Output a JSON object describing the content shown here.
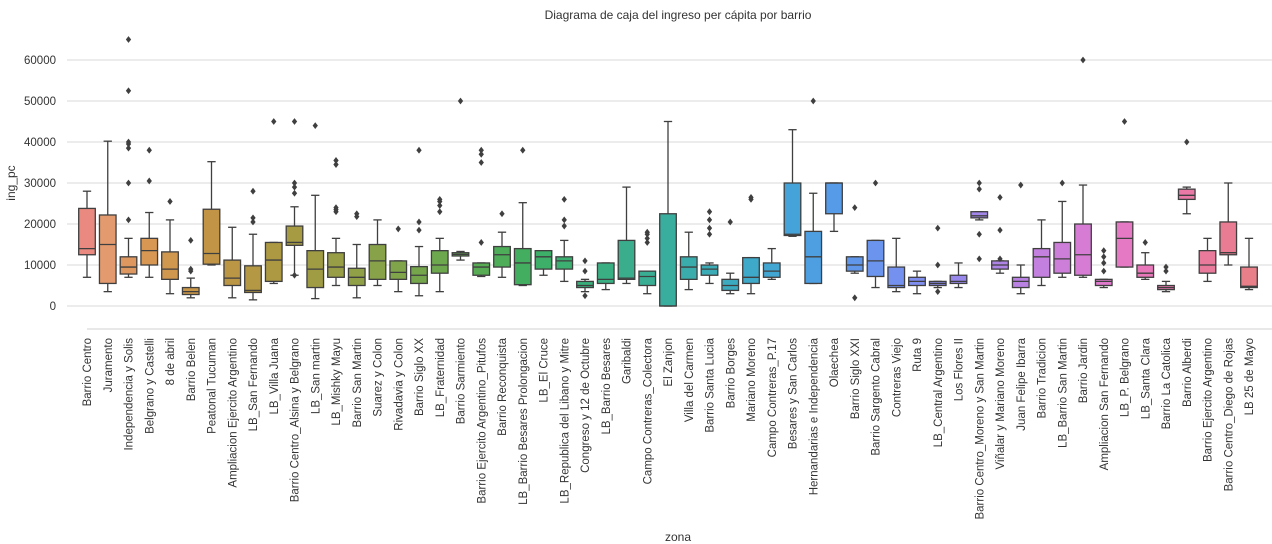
{
  "chart_data": {
    "type": "box",
    "title": "Diagrama de caja del ingreso per cápita por barrio",
    "xlabel": "zona",
    "ylabel": "ing_pc",
    "ylim": [
      -3000,
      66000
    ],
    "yticks": [
      0,
      10000,
      20000,
      30000,
      40000,
      50000,
      60000
    ],
    "grid": "horizontal",
    "legend": "none",
    "categories": [
      {
        "name": "Barrio Centro",
        "color": "#e9897f",
        "whislo": 7000,
        "q1": 12500,
        "med": 14000,
        "q3": 23800,
        "whishi": 28000,
        "fliers": []
      },
      {
        "name": "Juramento",
        "color": "#e39a6e",
        "whislo": 3500,
        "q1": 5500,
        "med": 15000,
        "q3": 22200,
        "whishi": 40200,
        "fliers": []
      },
      {
        "name": "Independencia y Solis",
        "color": "#de975f",
        "whislo": 7000,
        "q1": 7800,
        "med": 9500,
        "q3": 12000,
        "whishi": 16500,
        "fliers": [
          21000,
          30000,
          38500,
          39500,
          40000,
          52500,
          65000
        ]
      },
      {
        "name": "Belgrano y Castelli",
        "color": "#d89854",
        "whislo": 7000,
        "q1": 10000,
        "med": 13500,
        "q3": 16500,
        "whishi": 22800,
        "fliers": [
          30500,
          38000
        ]
      },
      {
        "name": "8 de abril",
        "color": "#d0974e",
        "whislo": 3000,
        "q1": 6500,
        "med": 9000,
        "q3": 13200,
        "whishi": 21000,
        "fliers": [
          25500
        ]
      },
      {
        "name": "Barrio Belen",
        "color": "#c99648",
        "whislo": 2000,
        "q1": 2800,
        "med": 3500,
        "q3": 4500,
        "whishi": 6800,
        "fliers": [
          8500,
          9000,
          16000
        ]
      },
      {
        "name": "Peatonal Tucuman",
        "color": "#c29546",
        "whislo": 10000,
        "q1": 10200,
        "med": 12800,
        "q3": 23600,
        "whishi": 35200,
        "fliers": []
      },
      {
        "name": "Ampliacion Ejercito Argentino",
        "color": "#bb9644",
        "whislo": 2000,
        "q1": 5000,
        "med": 6800,
        "q3": 11200,
        "whishi": 19200,
        "fliers": []
      },
      {
        "name": "LB_San Fernando",
        "color": "#b59843",
        "whislo": 1500,
        "q1": 3300,
        "med": 3800,
        "q3": 9800,
        "whishi": 17500,
        "fliers": [
          20500,
          21500,
          28000
        ]
      },
      {
        "name": "LB_Villa Juana",
        "color": "#ae9943",
        "whislo": 5500,
        "q1": 6000,
        "med": 11200,
        "q3": 15500,
        "whishi": 15500,
        "fliers": [
          45000
        ]
      },
      {
        "name": "Barrio Centro_Alsina y Belgrano",
        "color": "#a69b43",
        "whislo": 7500,
        "q1": 14800,
        "med": 15500,
        "q3": 19500,
        "whishi": 24200,
        "fliers": [
          7500,
          27500,
          29000,
          30000,
          45000
        ]
      },
      {
        "name": "LB_San martin",
        "color": "#9f9c44",
        "whislo": 1800,
        "q1": 4500,
        "med": 9000,
        "q3": 13500,
        "whishi": 27000,
        "fliers": [
          44000
        ]
      },
      {
        "name": "LB_Mishky Mayu",
        "color": "#979e45",
        "whislo": 5000,
        "q1": 7000,
        "med": 9500,
        "q3": 13000,
        "whishi": 16500,
        "fliers": [
          23000,
          23500,
          24000,
          34500,
          35500
        ]
      },
      {
        "name": "Barrio San Martin",
        "color": "#8fa046",
        "whislo": 2000,
        "q1": 5000,
        "med": 7000,
        "q3": 9200,
        "whishi": 15000,
        "fliers": [
          21800,
          22500
        ]
      },
      {
        "name": "Suarez y Colon",
        "color": "#87a248",
        "whislo": 5000,
        "q1": 6500,
        "med": 11000,
        "q3": 15000,
        "whishi": 21000,
        "fliers": []
      },
      {
        "name": "Rivadavia y Colon",
        "color": "#7fa44a",
        "whislo": 3500,
        "q1": 6500,
        "med": 8200,
        "q3": 11000,
        "whishi": 11000,
        "fliers": [
          18800
        ]
      },
      {
        "name": "Barrio Siglo XX",
        "color": "#76a64c",
        "whislo": 2500,
        "q1": 5500,
        "med": 7500,
        "q3": 9600,
        "whishi": 14500,
        "fliers": [
          18500,
          20500,
          38000
        ]
      },
      {
        "name": "LB_Fraternidad",
        "color": "#6da84e",
        "whislo": 3500,
        "q1": 8000,
        "med": 10000,
        "q3": 13500,
        "whishi": 16500,
        "fliers": [
          23000,
          24500,
          25500,
          26000
        ]
      },
      {
        "name": "Barrio Sarmiento",
        "color": "#63aa51",
        "whislo": 11200,
        "q1": 12200,
        "med": 12600,
        "q3": 13000,
        "whishi": 13300,
        "fliers": [
          50000
        ]
      },
      {
        "name": "Barrio Ejercito Argentino_Pitufos",
        "color": "#58ac54",
        "whislo": 7200,
        "q1": 7500,
        "med": 9500,
        "q3": 10500,
        "whishi": 10500,
        "fliers": [
          15500,
          35000,
          37000,
          38000
        ]
      },
      {
        "name": "Barrio Reconquista",
        "color": "#4dad59",
        "whislo": 7000,
        "q1": 9500,
        "med": 12500,
        "q3": 14500,
        "whishi": 18000,
        "fliers": [
          22500
        ]
      },
      {
        "name": "LB_Barrio Besares Prolongacion",
        "color": "#43ae60",
        "whislo": 5000,
        "q1": 5200,
        "med": 10500,
        "q3": 14000,
        "whishi": 25200,
        "fliers": [
          38000
        ]
      },
      {
        "name": "LB_El Cruce",
        "color": "#3daf68",
        "whislo": 7500,
        "q1": 9000,
        "med": 12000,
        "q3": 13500,
        "whishi": 13500,
        "fliers": []
      },
      {
        "name": "LB_Republica del Libano y Mitre",
        "color": "#3bb071",
        "whislo": 6000,
        "q1": 9000,
        "med": 11000,
        "q3": 12000,
        "whishi": 16000,
        "fliers": [
          19500,
          21000,
          26000
        ]
      },
      {
        "name": "Congreso y 12 de Octubre",
        "color": "#3aaf7a",
        "whislo": 3500,
        "q1": 4500,
        "med": 5000,
        "q3": 6000,
        "whishi": 6500,
        "fliers": [
          2500,
          8500,
          11000
        ]
      },
      {
        "name": "LB_Barrio Besares",
        "color": "#3aaf83",
        "whislo": 4000,
        "q1": 5500,
        "med": 6500,
        "q3": 10500,
        "whishi": 10500,
        "fliers": []
      },
      {
        "name": "Garibaldi",
        "color": "#3aae8c",
        "whislo": 5500,
        "q1": 6500,
        "med": 6800,
        "q3": 16000,
        "whishi": 29000,
        "fliers": []
      },
      {
        "name": "Campo Contreras_Colectora",
        "color": "#39ae95",
        "whislo": 3000,
        "q1": 5000,
        "med": 7200,
        "q3": 8500,
        "whishi": 8500,
        "fliers": [
          15500,
          16500,
          17500,
          18000
        ]
      },
      {
        "name": "El Zanjon",
        "color": "#39ad9e",
        "whislo": 0,
        "q1": 0,
        "med": 0,
        "q3": 22500,
        "whishi": 45000,
        "fliers": []
      },
      {
        "name": "Villa del Carmen",
        "color": "#3aacab",
        "whislo": 4000,
        "q1": 6500,
        "med": 9500,
        "q3": 12000,
        "whishi": 18000,
        "fliers": []
      },
      {
        "name": "Barrio Santa Lucia",
        "color": "#3bacb5",
        "whislo": 5500,
        "q1": 7500,
        "med": 9000,
        "q3": 10000,
        "whishi": 10500,
        "fliers": [
          17500,
          19000,
          21000,
          23000
        ]
      },
      {
        "name": "Barrio Borges",
        "color": "#3cabbf",
        "whislo": 3000,
        "q1": 3800,
        "med": 5000,
        "q3": 6500,
        "whishi": 8000,
        "fliers": [
          20500
        ]
      },
      {
        "name": "Mariano Moreno",
        "color": "#3ea9c9",
        "whislo": 3000,
        "q1": 5500,
        "med": 7000,
        "q3": 11800,
        "whishi": 11800,
        "fliers": [
          26000,
          26500
        ]
      },
      {
        "name": "Campo Contreras_P.17",
        "color": "#42a6d2",
        "whislo": 6500,
        "q1": 7000,
        "med": 8500,
        "q3": 10500,
        "whishi": 14000,
        "fliers": []
      },
      {
        "name": "Besares y San Carlos",
        "color": "#46a3da",
        "whislo": 17000,
        "q1": 17200,
        "med": 17500,
        "q3": 30000,
        "whishi": 43000,
        "fliers": []
      },
      {
        "name": "Hernandarias e Independencia",
        "color": "#4d9fe2",
        "whislo": 5500,
        "q1": 5500,
        "med": 12000,
        "q3": 18200,
        "whishi": 27500,
        "fliers": [
          50000
        ]
      },
      {
        "name": "Olaechea",
        "color": "#569be7",
        "whislo": 18200,
        "q1": 22500,
        "med": 30000,
        "q3": 30000,
        "whishi": 30000,
        "fliers": []
      },
      {
        "name": "Barrio Siglo XXI",
        "color": "#6097eb",
        "whislo": 8000,
        "q1": 8500,
        "med": 10000,
        "q3": 12000,
        "whishi": 12000,
        "fliers": [
          2000,
          24000
        ]
      },
      {
        "name": "Barrio Sargento Cabral",
        "color": "#6a94ee",
        "whislo": 4500,
        "q1": 7200,
        "med": 11000,
        "q3": 16000,
        "whishi": 16000,
        "fliers": [
          30000
        ]
      },
      {
        "name": "Contreras Viejo",
        "color": "#7591ef",
        "whislo": 3500,
        "q1": 4500,
        "med": 5000,
        "q3": 9500,
        "whishi": 16500,
        "fliers": []
      },
      {
        "name": "Ruta 9",
        "color": "#808eef",
        "whislo": 3000,
        "q1": 5000,
        "med": 6000,
        "q3": 7000,
        "whishi": 8500,
        "fliers": []
      },
      {
        "name": "LB_Central Argentino",
        "color": "#8c8bee",
        "whislo": 4500,
        "q1": 5000,
        "med": 5500,
        "q3": 6000,
        "whishi": 6000,
        "fliers": [
          3500,
          10000,
          19000
        ]
      },
      {
        "name": "Los Flores II",
        "color": "#9888ec",
        "whislo": 4500,
        "q1": 5500,
        "med": 6000,
        "q3": 7500,
        "whishi": 10500,
        "fliers": []
      },
      {
        "name": "Barrio Centro_Moreno y San Martin",
        "color": "#a386e9",
        "whislo": 21000,
        "q1": 21500,
        "med": 22000,
        "q3": 23000,
        "whishi": 23000,
        "fliers": [
          11500,
          17500,
          28500,
          30000
        ]
      },
      {
        "name": "Viñalar y Mariano Moreno",
        "color": "#ae84e6",
        "whislo": 8000,
        "q1": 9000,
        "med": 10000,
        "q3": 11000,
        "whishi": 11000,
        "fliers": [
          11500,
          18500,
          26500
        ]
      },
      {
        "name": "Juan Felipe Ibarra",
        "color": "#b982e2",
        "whislo": 3000,
        "q1": 4500,
        "med": 6000,
        "q3": 7000,
        "whishi": 10000,
        "fliers": [
          29500
        ]
      },
      {
        "name": "Barrio Tradicion",
        "color": "#c380de",
        "whislo": 5000,
        "q1": 7000,
        "med": 12000,
        "q3": 14000,
        "whishi": 21000,
        "fliers": []
      },
      {
        "name": "LB_Barrio San Martin",
        "color": "#cd7ed9",
        "whislo": 7000,
        "q1": 8000,
        "med": 11500,
        "q3": 15500,
        "whishi": 25500,
        "fliers": [
          30000
        ]
      },
      {
        "name": "Barrio Jardin",
        "color": "#d77cd4",
        "whislo": 7000,
        "q1": 7500,
        "med": 12500,
        "q3": 20000,
        "whishi": 29500,
        "fliers": [
          60000
        ]
      },
      {
        "name": "Ampliacion San Fernando",
        "color": "#df7acd",
        "whislo": 4500,
        "q1": 5000,
        "med": 6000,
        "q3": 6500,
        "whishi": 6500,
        "fliers": [
          8500,
          10500,
          12000,
          13500
        ]
      },
      {
        "name": "LB_P. Belgrano",
        "color": "#e579c4",
        "whislo": 9500,
        "q1": 9500,
        "med": 16500,
        "q3": 20500,
        "whishi": 20500,
        "fliers": [
          45000
        ]
      },
      {
        "name": "LB_Santa Clara",
        "color": "#e878ba",
        "whislo": 6500,
        "q1": 7000,
        "med": 8000,
        "q3": 10000,
        "whishi": 13000,
        "fliers": [
          15500
        ]
      },
      {
        "name": "Barrio La Catolica",
        "color": "#ea78b0",
        "whislo": 3500,
        "q1": 4000,
        "med": 4500,
        "q3": 5000,
        "whishi": 6000,
        "fliers": [
          8500,
          9500
        ]
      },
      {
        "name": "Barrio Alberdi",
        "color": "#ea79a6",
        "whislo": 22500,
        "q1": 26000,
        "med": 27000,
        "q3": 28500,
        "whishi": 29000,
        "fliers": [
          40000
        ]
      },
      {
        "name": "Barrio Ejercito Argentino",
        "color": "#ea7a9c",
        "whislo": 6000,
        "q1": 8000,
        "med": 10000,
        "q3": 13500,
        "whishi": 16500,
        "fliers": []
      },
      {
        "name": "Barrio Centro_Diego de Rojas",
        "color": "#e97c92",
        "whislo": 10000,
        "q1": 12500,
        "med": 13000,
        "q3": 20500,
        "whishi": 30000,
        "fliers": []
      },
      {
        "name": "LB  25 de Mayo",
        "color": "#e87f89",
        "whislo": 4000,
        "q1": 4500,
        "med": 4800,
        "q3": 9500,
        "whishi": 16500,
        "fliers": []
      }
    ]
  }
}
